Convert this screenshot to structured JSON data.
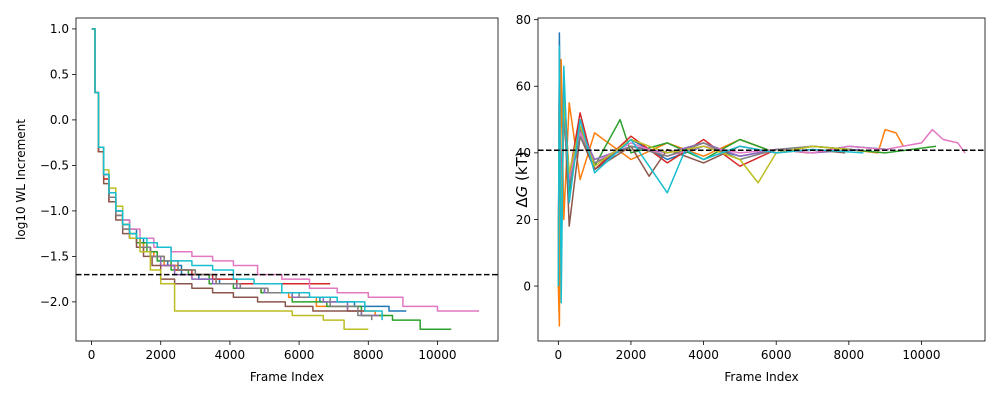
{
  "chart_data": [
    {
      "type": "line",
      "title": "",
      "xlabel": "Frame Index",
      "ylabel": "log10 WL Increment",
      "xlim": [
        -450,
        11750
      ],
      "ylim": [
        -2.43,
        1.12
      ],
      "xticks": [
        0,
        2000,
        4000,
        6000,
        8000,
        10000
      ],
      "yticks": [
        -2.0,
        -1.5,
        -1.0,
        -0.5,
        0.0,
        0.5,
        1.0
      ],
      "ytick_labels": [
        "−2.0",
        "−1.5",
        "−1.0",
        "−0.5",
        "0.0",
        "0.5",
        "1.0"
      ],
      "grid": false,
      "reference_line": {
        "y": -1.7,
        "style": "dashed",
        "color": "#000000"
      },
      "series": [
        {
          "color": "#1f77b4",
          "x": [
            0,
            40,
            100,
            200,
            350,
            500,
            700,
            900,
            1100,
            1300,
            1500,
            1700,
            1900,
            2200,
            2600,
            3100,
            3700,
            4300,
            5000,
            5800,
            6600,
            7600,
            8600,
            9100
          ],
          "y": [
            1.0,
            1.0,
            0.3,
            -0.3,
            -0.6,
            -0.8,
            -1.0,
            -1.1,
            -1.2,
            -1.3,
            -1.4,
            -1.5,
            -1.55,
            -1.6,
            -1.7,
            -1.75,
            -1.8,
            -1.85,
            -1.9,
            -1.95,
            -2.0,
            -2.05,
            -2.1,
            -2.1
          ]
        },
        {
          "color": "#ff7f0e",
          "x": [
            0,
            40,
            100,
            200,
            350,
            500,
            700,
            900,
            1100,
            1300,
            1500,
            1800,
            2100,
            2500,
            3000,
            3600,
            4200,
            4900,
            5700,
            6500,
            7400,
            8200,
            8500
          ],
          "y": [
            1.0,
            1.0,
            0.3,
            -0.35,
            -0.65,
            -0.85,
            -1.05,
            -1.15,
            -1.25,
            -1.35,
            -1.45,
            -1.5,
            -1.6,
            -1.65,
            -1.7,
            -1.8,
            -1.85,
            -1.9,
            -1.95,
            -2.05,
            -2.1,
            -2.15,
            -2.15
          ]
        },
        {
          "color": "#2ca02c",
          "x": [
            0,
            40,
            100,
            200,
            350,
            500,
            700,
            900,
            1100,
            1300,
            1600,
            1900,
            2300,
            2800,
            3400,
            4100,
            4900,
            5800,
            6800,
            7800,
            8700,
            9500,
            10400
          ],
          "y": [
            1.0,
            1.0,
            0.3,
            -0.3,
            -0.6,
            -0.85,
            -1.0,
            -1.15,
            -1.25,
            -1.35,
            -1.45,
            -1.55,
            -1.65,
            -1.7,
            -1.8,
            -1.85,
            -1.9,
            -2.0,
            -2.05,
            -2.15,
            -2.2,
            -2.3,
            -2.3
          ]
        },
        {
          "color": "#d62728",
          "x": [
            0,
            40,
            100,
            200,
            350,
            500,
            700,
            900,
            1100,
            1400,
            1700,
            2000,
            2400,
            2900,
            3500,
            4200,
            5000,
            5700,
            6300,
            6900
          ],
          "y": [
            1.0,
            1.0,
            0.3,
            -0.35,
            -0.65,
            -0.9,
            -1.05,
            -1.2,
            -1.3,
            -1.4,
            -1.5,
            -1.6,
            -1.65,
            -1.7,
            -1.75,
            -1.8,
            -1.8,
            -1.8,
            -1.8,
            -1.8
          ]
        },
        {
          "color": "#9467bd",
          "x": [
            0,
            40,
            100,
            200,
            350,
            500,
            700,
            900,
            1100,
            1400,
            1700,
            2000,
            2400,
            2900,
            3500,
            4200,
            5000,
            5800,
            6700,
            7400,
            7800,
            8300
          ],
          "y": [
            1.0,
            1.0,
            0.3,
            -0.3,
            -0.6,
            -0.85,
            -1.0,
            -1.15,
            -1.3,
            -1.4,
            -1.5,
            -1.6,
            -1.7,
            -1.75,
            -1.8,
            -1.85,
            -1.9,
            -1.95,
            -2.0,
            -2.1,
            -2.15,
            -2.15
          ]
        },
        {
          "color": "#8c564b",
          "x": [
            0,
            40,
            100,
            200,
            350,
            500,
            700,
            900,
            1100,
            1300,
            1500,
            1750,
            2000,
            2400,
            2900,
            3500,
            4100,
            4800,
            5600,
            6400,
            7200,
            7900
          ],
          "y": [
            1.0,
            1.0,
            0.3,
            -0.35,
            -0.7,
            -0.9,
            -1.1,
            -1.25,
            -1.3,
            -1.4,
            -1.5,
            -1.6,
            -1.75,
            -1.8,
            -1.85,
            -1.9,
            -1.95,
            -2.0,
            -2.05,
            -2.1,
            -2.1,
            -2.1
          ]
        },
        {
          "color": "#e377c2",
          "x": [
            0,
            40,
            100,
            200,
            350,
            500,
            700,
            900,
            1100,
            1400,
            1800,
            2300,
            2900,
            3500,
            4100,
            4800,
            5500,
            6300,
            7100,
            8000,
            9000,
            10000,
            11200
          ],
          "y": [
            1.0,
            1.0,
            0.3,
            -0.3,
            -0.6,
            -0.8,
            -1.0,
            -1.1,
            -1.2,
            -1.3,
            -1.4,
            -1.45,
            -1.5,
            -1.55,
            -1.6,
            -1.7,
            -1.75,
            -1.85,
            -1.9,
            -1.95,
            -2.05,
            -2.1,
            -2.1
          ]
        },
        {
          "color": "#7f7f7f",
          "x": [
            0,
            40,
            100,
            200,
            350,
            500,
            700,
            900,
            1100,
            1400,
            1700,
            2100,
            2500,
            3000,
            3600,
            4300,
            5100,
            6000,
            6900,
            7700,
            8100
          ],
          "y": [
            1.0,
            1.0,
            0.3,
            -0.3,
            -0.6,
            -0.85,
            -1.05,
            -1.2,
            -1.3,
            -1.4,
            -1.5,
            -1.55,
            -1.65,
            -1.7,
            -1.8,
            -1.85,
            -1.9,
            -1.95,
            -2.05,
            -2.15,
            -2.2
          ]
        },
        {
          "color": "#bcbd22",
          "x": [
            0,
            40,
            100,
            200,
            350,
            500,
            700,
            900,
            1100,
            1400,
            1700,
            2000,
            2400,
            3000,
            3600,
            4300,
            5000,
            5800,
            6700,
            7300,
            8000
          ],
          "y": [
            1.0,
            1.0,
            0.3,
            -0.3,
            -0.55,
            -0.75,
            -0.95,
            -1.15,
            -1.3,
            -1.45,
            -1.65,
            -1.8,
            -2.1,
            -2.1,
            -2.1,
            -2.1,
            -2.1,
            -2.15,
            -2.2,
            -2.3,
            -2.3
          ]
        },
        {
          "color": "#17becf",
          "x": [
            0,
            40,
            100,
            200,
            350,
            500,
            700,
            900,
            1100,
            1300,
            1600,
            1900,
            2300,
            2900,
            3500,
            4100,
            4700,
            5500,
            6300,
            7100,
            7900,
            8400
          ],
          "y": [
            1.0,
            1.0,
            0.3,
            -0.3,
            -0.6,
            -0.8,
            -1.0,
            -1.15,
            -1.25,
            -1.3,
            -1.35,
            -1.4,
            -1.55,
            -1.6,
            -1.65,
            -1.75,
            -1.8,
            -1.9,
            -1.95,
            -2.0,
            -2.1,
            -2.2
          ]
        }
      ]
    },
    {
      "type": "line",
      "title": "",
      "xlabel": "Frame Index",
      "ylabel_prefix": "Δ",
      "ylabel_var": "G",
      "ylabel_suffix": " (kT)",
      "xlim": [
        -560,
        11750
      ],
      "ylim": [
        -16.5,
        80.5
      ],
      "xticks": [
        0,
        2000,
        4000,
        6000,
        8000,
        10000
      ],
      "yticks": [
        0,
        20,
        40,
        60,
        80
      ],
      "ytick_labels": [
        "0",
        "20",
        "40",
        "60",
        "80"
      ],
      "grid": false,
      "reference_line": {
        "y": 40.8,
        "style": "dashed",
        "color": "#000000"
      },
      "series": [
        {
          "color": "#1f77b4",
          "x": [
            0,
            30,
            80,
            150,
            300,
            600,
            1000,
            2000,
            3000,
            4000,
            5000,
            6000,
            7000,
            8000,
            9100
          ],
          "y": [
            0,
            76,
            5,
            62,
            30,
            50,
            35,
            44,
            38,
            42,
            39,
            41,
            40,
            42,
            41
          ]
        },
        {
          "color": "#ff7f0e",
          "x": [
            0,
            30,
            80,
            150,
            300,
            600,
            1000,
            2000,
            3000,
            4000,
            5000,
            6000,
            7000,
            8000,
            8800,
            9000,
            9300,
            9500
          ],
          "y": [
            0,
            -12,
            68,
            20,
            55,
            32,
            46,
            38,
            43,
            39,
            44,
            40,
            42,
            41,
            40,
            47,
            46,
            42
          ]
        },
        {
          "color": "#2ca02c",
          "x": [
            0,
            30,
            80,
            150,
            300,
            600,
            1000,
            1700,
            2000,
            3000,
            4000,
            5000,
            6000,
            7000,
            8000,
            9000,
            10400
          ],
          "y": [
            0,
            65,
            15,
            55,
            28,
            48,
            36,
            50,
            40,
            43,
            38,
            44,
            40,
            42,
            41,
            40,
            42
          ]
        },
        {
          "color": "#d62728",
          "x": [
            0,
            30,
            80,
            150,
            300,
            600,
            1000,
            2000,
            3000,
            4000,
            5000,
            6000,
            6900
          ],
          "y": [
            0,
            70,
            10,
            60,
            33,
            52,
            35,
            45,
            37,
            44,
            36,
            41,
            40
          ]
        },
        {
          "color": "#9467bd",
          "x": [
            0,
            30,
            80,
            150,
            300,
            600,
            1000,
            2000,
            3000,
            4000,
            5000,
            6000,
            7000,
            8300
          ],
          "y": [
            0,
            60,
            20,
            52,
            30,
            47,
            38,
            42,
            40,
            43,
            39,
            41,
            40,
            41
          ]
        },
        {
          "color": "#8c564b",
          "x": [
            0,
            30,
            80,
            150,
            300,
            600,
            1000,
            2000,
            2500,
            3000,
            4000,
            5000,
            6000,
            7000,
            7900
          ],
          "y": [
            0,
            55,
            25,
            58,
            18,
            45,
            35,
            42,
            33,
            41,
            37,
            42,
            40,
            41,
            40
          ]
        },
        {
          "color": "#e377c2",
          "x": [
            0,
            30,
            80,
            150,
            300,
            600,
            1000,
            2000,
            3000,
            4000,
            5000,
            6000,
            7000,
            8000,
            9000,
            10000,
            10300,
            10600,
            11000,
            11200
          ],
          "y": [
            0,
            62,
            22,
            54,
            32,
            46,
            37,
            43,
            39,
            42,
            40,
            41,
            40,
            42,
            41,
            43,
            47,
            44,
            43,
            40
          ]
        },
        {
          "color": "#7f7f7f",
          "x": [
            0,
            30,
            80,
            150,
            300,
            600,
            1000,
            2000,
            3000,
            4000,
            5000,
            6000,
            7000,
            8100
          ],
          "y": [
            0,
            58,
            18,
            50,
            30,
            45,
            37,
            42,
            39,
            43,
            38,
            41,
            42,
            41
          ]
        },
        {
          "color": "#bcbd22",
          "x": [
            0,
            30,
            80,
            150,
            300,
            600,
            1000,
            2000,
            3000,
            4000,
            5000,
            5500,
            6000,
            7000,
            8000
          ],
          "y": [
            0,
            64,
            12,
            56,
            34,
            48,
            36,
            44,
            40,
            42,
            38,
            31,
            40,
            42,
            41
          ]
        },
        {
          "color": "#17becf",
          "x": [
            0,
            30,
            80,
            150,
            300,
            600,
            1000,
            2000,
            2500,
            3000,
            3500,
            4000,
            5000,
            6000,
            7000,
            8400
          ],
          "y": [
            0,
            72,
            -5,
            66,
            25,
            50,
            34,
            44,
            36,
            28,
            41,
            38,
            42,
            40,
            41,
            40
          ]
        }
      ]
    }
  ]
}
